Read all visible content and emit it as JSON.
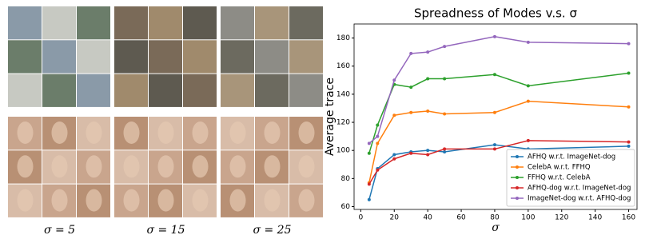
{
  "image_panels": [
    {
      "label": "σ = 5"
    },
    {
      "label": "σ = 15"
    },
    {
      "label": "σ = 25"
    }
  ],
  "chart_data": {
    "type": "line",
    "title": "Spreadness of Modes v.s. σ",
    "x_label": "σ",
    "y_label": "Average trace",
    "x": [
      5,
      10,
      20,
      30,
      40,
      50,
      80,
      100,
      160
    ],
    "series": [
      {
        "name": "AFHQ w.r.t. ImageNet-dog",
        "color": "#1f77b4",
        "values": [
          65,
          87,
          97,
          99,
          100,
          99,
          104,
          101,
          103
        ]
      },
      {
        "name": "CelebA w.r.t. FFHQ",
        "color": "#ff7f0e",
        "values": [
          77,
          105,
          125,
          127,
          128,
          126,
          127,
          135,
          131
        ]
      },
      {
        "name": "FFHQ w.r.t. CelebA",
        "color": "#2ca02c",
        "values": [
          98,
          118,
          147,
          145,
          151,
          151,
          154,
          146,
          155
        ]
      },
      {
        "name": "AFHQ-dog w.r.t. ImageNet-dog",
        "color": "#d62728",
        "values": [
          76,
          86,
          94,
          98,
          97,
          101,
          101,
          107,
          106
        ]
      },
      {
        "name": "ImageNet-dog w.r.t. AFHQ-dog",
        "color": "#9467bd",
        "values": [
          105,
          110,
          150,
          169,
          170,
          174,
          181,
          177,
          176
        ]
      }
    ],
    "xlim": [
      -4,
      165
    ],
    "xticks": [
      0,
      20,
      40,
      60,
      80,
      100,
      120,
      140,
      160
    ],
    "ylim": [
      58,
      190
    ],
    "yticks": [
      60,
      80,
      100,
      120,
      140,
      160,
      180
    ],
    "legend": "lower right"
  }
}
